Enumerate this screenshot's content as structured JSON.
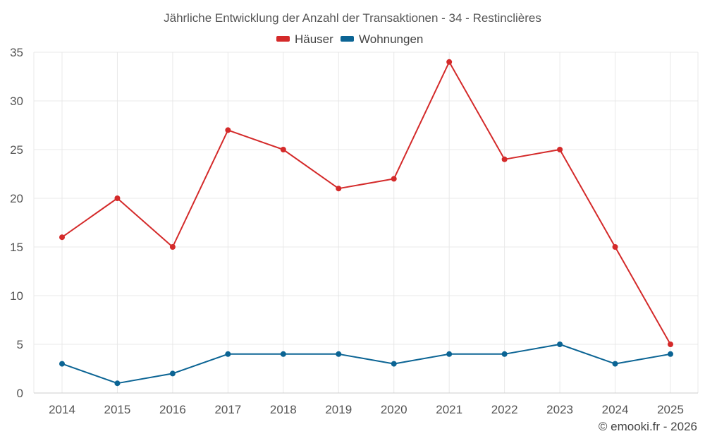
{
  "chart_data": {
    "type": "line",
    "title": "Jährliche Entwicklung der Anzahl der Transaktionen - 34 - Restinclières",
    "categories": [
      "2014",
      "2015",
      "2016",
      "2017",
      "2018",
      "2019",
      "2020",
      "2021",
      "2022",
      "2023",
      "2024",
      "2025"
    ],
    "series": [
      {
        "name": "Häuser",
        "color": "#d42a2a",
        "values": [
          16,
          20,
          15,
          27,
          25,
          21,
          22,
          34,
          24,
          25,
          15,
          5
        ]
      },
      {
        "name": "Wohnungen",
        "color": "#0b6494",
        "values": [
          3,
          1,
          2,
          4,
          4,
          4,
          3,
          4,
          4,
          5,
          3,
          4
        ]
      }
    ],
    "ylim": [
      0,
      35
    ],
    "yticks": [
      0,
      5,
      10,
      15,
      20,
      25,
      30,
      35
    ],
    "xlabel": "",
    "ylabel": "",
    "grid": true,
    "legend_position": "top-center"
  },
  "credit": "© emooki.fr - 2026"
}
